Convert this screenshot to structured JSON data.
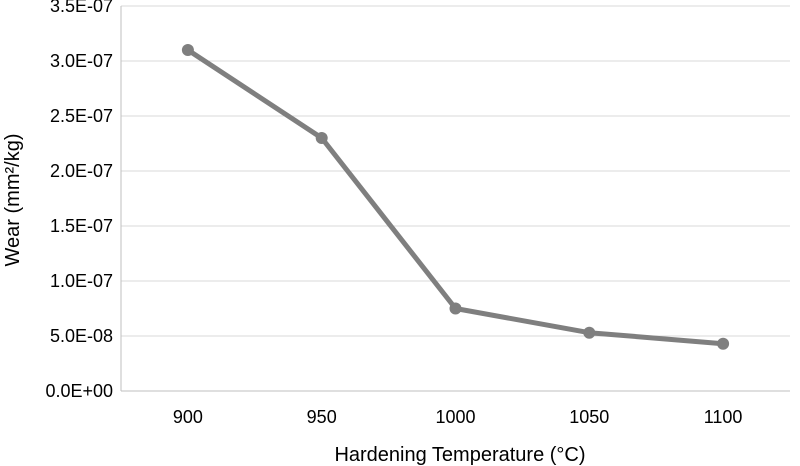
{
  "chart_data": {
    "type": "line",
    "title": "",
    "xlabel": "Hardening Temperature (°C)",
    "ylabel": "Wear (mm²/kg)",
    "categories": [
      "900",
      "950",
      "1000",
      "1050",
      "1100"
    ],
    "x": [
      900,
      950,
      1000,
      1050,
      1100
    ],
    "series": [
      {
        "values": [
          3.1e-07,
          2.3e-07,
          7.5e-08,
          5.3e-08,
          4.3e-08
        ],
        "color": "#7f7f7f",
        "marker": "circle"
      }
    ],
    "ylim": [
      0,
      3.5e-07
    ],
    "yticks": [
      0,
      5e-08,
      1e-07,
      1.5e-07,
      2e-07,
      2.5e-07,
      3e-07,
      3.5e-07
    ],
    "ytick_labels": [
      "0.0E+00",
      "5.0E-08",
      "1.0E-07",
      "1.5E-07",
      "2.0E-07",
      "2.5E-07",
      "3.0E-07",
      "3.5E-07"
    ],
    "grid": "horizontal",
    "gridline_color": "#d9d9d9",
    "axis_color": "#bfbfbf",
    "legend": "none"
  }
}
